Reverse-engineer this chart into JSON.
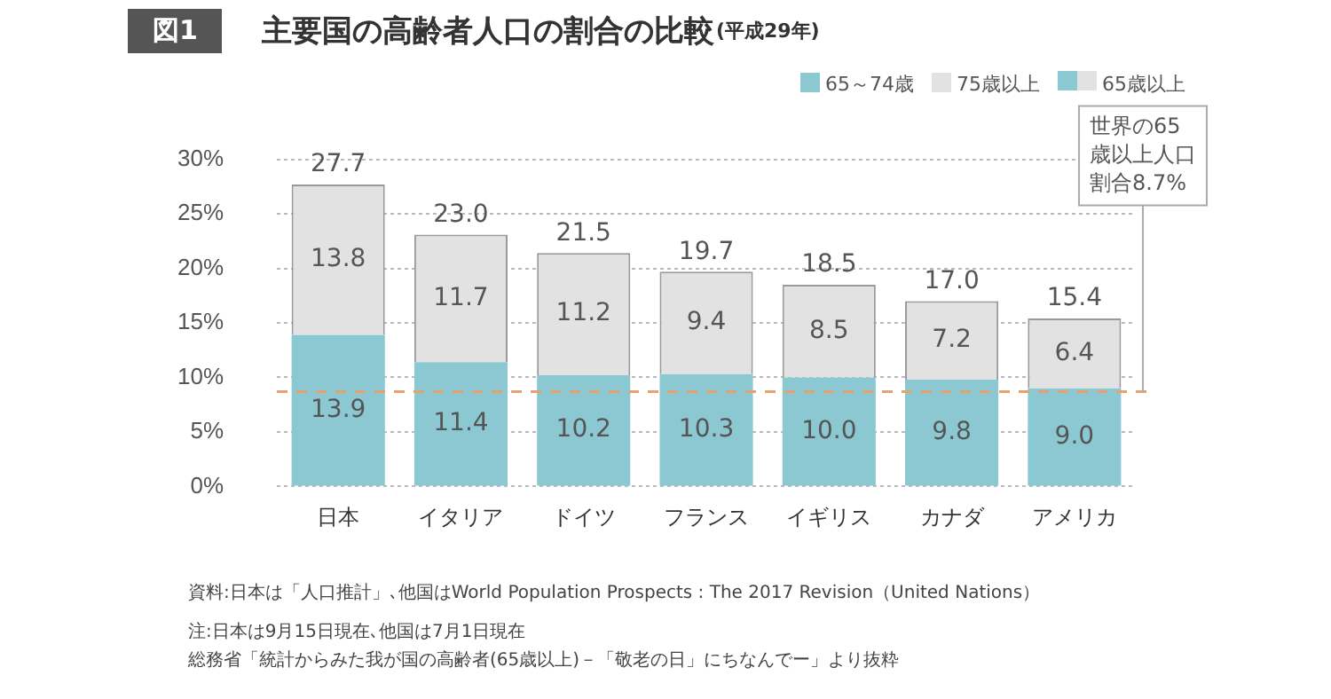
{
  "chart_data": {
    "type": "bar",
    "title": "主要国の高齢者人口の割合の比較",
    "subtitle": "(平成29年)",
    "categories": [
      "日本",
      "イタリア",
      "ドイツ",
      "フランス",
      "イギリス",
      "カナダ",
      "アメリカ"
    ],
    "series": [
      {
        "name": "65～74歳",
        "color": "#8cc8d2",
        "values": [
          13.9,
          11.4,
          10.2,
          10.3,
          10.0,
          9.8,
          9.0
        ],
        "value_labels": [
          "13.9",
          "11.4",
          "10.2",
          "10.3",
          "10.0",
          "9.8",
          "9.0"
        ]
      },
      {
        "name": "75歳以上",
        "color": "#e2e2e2",
        "values": [
          13.8,
          11.7,
          11.2,
          9.4,
          8.5,
          7.2,
          6.4
        ],
        "value_labels": [
          "13.8",
          "11.7",
          "11.2",
          "9.4",
          "8.5",
          "7.2",
          "6.4"
        ]
      }
    ],
    "stacked": true,
    "totals": [
      "27.7",
      "23.0",
      "21.5",
      "19.7",
      "18.5",
      "17.0",
      "15.4"
    ],
    "ylim": [
      0,
      30
    ],
    "yticks": [
      {
        "value": 0,
        "label": "0%"
      },
      {
        "value": 5,
        "label": "5%"
      },
      {
        "value": 10,
        "label": "10%"
      },
      {
        "value": 15,
        "label": "15%"
      },
      {
        "value": 20,
        "label": "20%"
      },
      {
        "value": 25,
        "label": "25%"
      },
      {
        "value": 30,
        "label": "30%"
      }
    ],
    "grid": "y",
    "legend": "top right",
    "ref_lines": [
      {
        "axis": "y",
        "value": 8.7,
        "label": "世界の65歳以上人口割合8.7%",
        "color": "#e8a070",
        "line_style": "dashed"
      }
    ],
    "annotations": [
      "図1",
      "65歳以上",
      "資料:日本は「人口推計」､他国はWorld Population Prospects : The 2017 Revision（United Nations）",
      "注:日本は9月15日現在､他国は7月1日現在",
      "総務省「統計からみた我が国の高齢者(65歳以上)－「敬老の日」にちなんでー」より抜粋"
    ]
  }
}
